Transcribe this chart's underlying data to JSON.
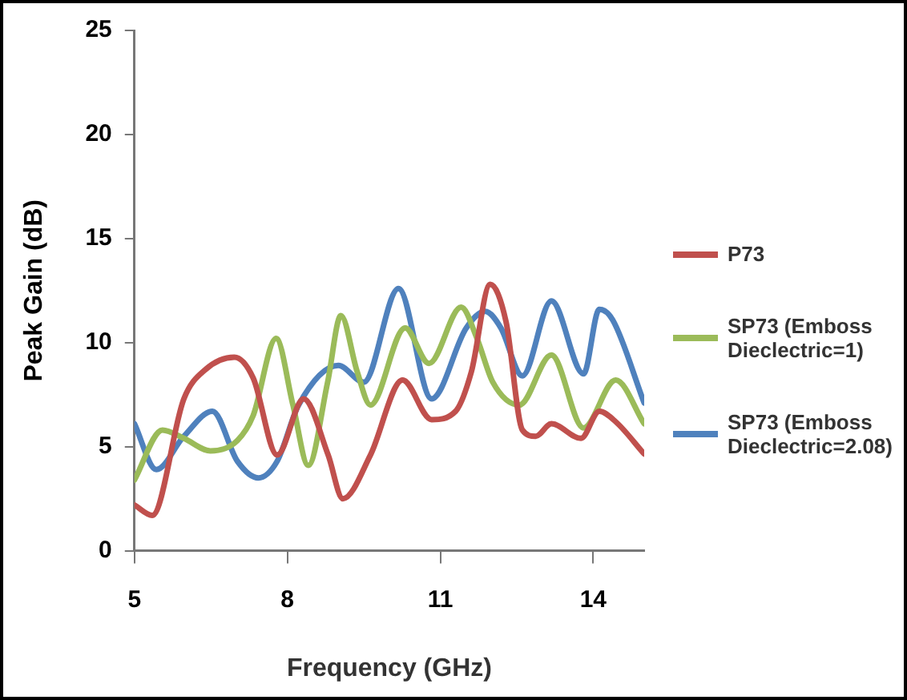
{
  "chart_data": {
    "type": "line",
    "xlabel": "Frequency (GHz)",
    "ylabel": "Peak Gain (dB)",
    "xlim": [
      5,
      15
    ],
    "xticks": [
      5,
      8,
      11,
      14
    ],
    "ylim": [
      0,
      25
    ],
    "yticks": [
      0,
      5,
      10,
      15,
      20,
      25
    ],
    "grid": false,
    "legend": "right",
    "marker": "none",
    "line_style": "solid",
    "series": [
      {
        "name": "P73",
        "color": "#c0504d",
        "x": [
          5,
          5.35,
          5.97,
          6.39,
          6.96,
          7.33,
          7.8,
          8.32,
          8.8,
          9.09,
          9.63,
          10.26,
          10.83,
          11.3,
          11.61,
          11.98,
          12.29,
          12.61,
          12.87,
          13.18,
          13.76,
          14.12,
          14.44,
          15
        ],
        "values": [
          2.2,
          1.7,
          7.3,
          8.7,
          9.3,
          8.3,
          4.6,
          7.3,
          4.6,
          2.5,
          4.6,
          8.2,
          6.3,
          6.7,
          8.6,
          12.8,
          11.0,
          5.8,
          5.5,
          6.1,
          5.4,
          6.7,
          6.2,
          4.65
        ]
      },
      {
        "name": "SP73 (Emboss Dieclectric=1)",
        "color": "#9bbb59",
        "x": [
          5,
          5.55,
          5.97,
          6.49,
          7.02,
          7.33,
          7.78,
          8.11,
          8.41,
          8.79,
          9.05,
          9.37,
          9.63,
          10.31,
          10.78,
          11.41,
          11.72,
          12.03,
          12.55,
          13.18,
          13.81,
          14.44,
          15
        ],
        "values": [
          3.4,
          5.8,
          5.4,
          4.8,
          5.3,
          6.5,
          10.2,
          7.0,
          4.1,
          8.1,
          11.3,
          8.6,
          7.0,
          10.7,
          9.0,
          11.7,
          10.2,
          8.1,
          7.0,
          9.4,
          5.9,
          8.2,
          6.1
        ]
      },
      {
        "name": "SP73 (Emboss Dieclectric=2.08)",
        "color": "#4f81bd",
        "x": [
          5,
          5.43,
          5.97,
          6.53,
          7.02,
          7.43,
          7.8,
          8.22,
          9.0,
          9.5,
          10.18,
          10.83,
          11.51,
          11.88,
          12.19,
          12.61,
          13.18,
          13.81,
          14.12,
          14.38,
          15
        ],
        "values": [
          6.1,
          3.9,
          5.5,
          6.7,
          4.3,
          3.5,
          4.3,
          7.0,
          8.9,
          8.1,
          12.6,
          7.3,
          10.7,
          11.5,
          10.7,
          8.4,
          12.0,
          8.5,
          11.6,
          11.1,
          7.1
        ]
      }
    ]
  }
}
